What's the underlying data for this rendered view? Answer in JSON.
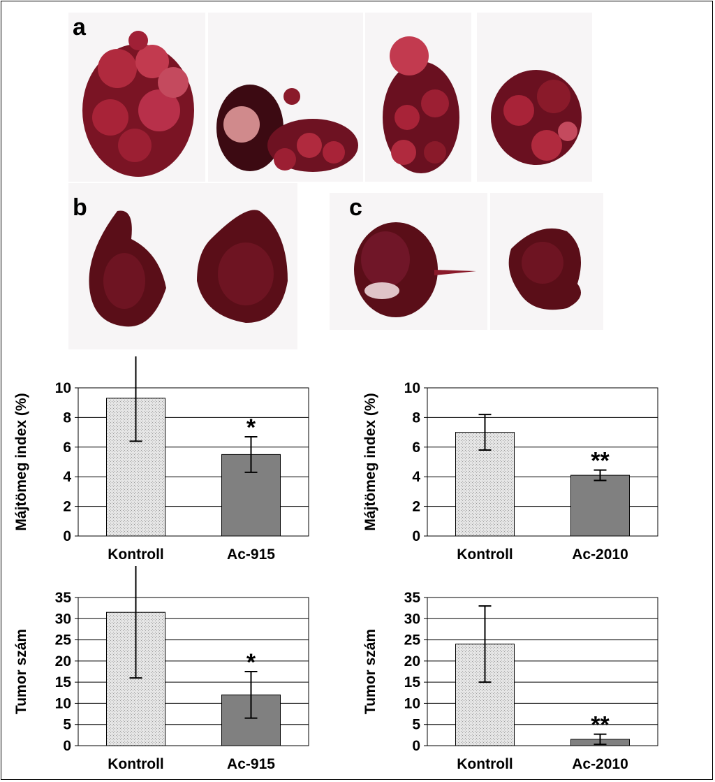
{
  "panels": {
    "a": {
      "label": "a",
      "photo_count": 4
    },
    "b": {
      "label": "b",
      "photo_count": 2
    },
    "c": {
      "label": "c",
      "photo_count": 2
    }
  },
  "colors": {
    "control_fill": "#e6e6e6",
    "treated_fill": "#808080",
    "grid": "#000000",
    "liver_dark": "#5a0e18",
    "liver_mid": "#8a1a2a",
    "liver_light": "#c23a4f"
  },
  "chart_data": [
    {
      "type": "bar",
      "id": "liver-index-ac915",
      "categories": [
        "Kontroll",
        "Ac-915"
      ],
      "values": [
        9.3,
        5.5
      ],
      "errors": [
        2.9,
        1.2
      ],
      "annotations": [
        "",
        "*"
      ],
      "ylabel": "Májtömeg index (%)",
      "ylim": [
        0,
        10
      ],
      "yticks": [
        0,
        2,
        4,
        6,
        8,
        10
      ],
      "grid": true
    },
    {
      "type": "bar",
      "id": "liver-index-ac2010",
      "categories": [
        "Kontroll",
        "Ac-2010"
      ],
      "values": [
        7.0,
        4.1
      ],
      "errors": [
        1.2,
        0.35
      ],
      "annotations": [
        "",
        "**"
      ],
      "ylabel": "Májtömeg index (%)",
      "ylim": [
        0,
        10
      ],
      "yticks": [
        0,
        2,
        4,
        6,
        8,
        10
      ],
      "grid": true
    },
    {
      "type": "bar",
      "id": "tumor-count-ac915",
      "categories": [
        "Kontroll",
        "Ac-915"
      ],
      "values": [
        31.5,
        12.0
      ],
      "errors": [
        15.5,
        5.5
      ],
      "annotations": [
        "",
        "*"
      ],
      "ylabel": "Tumor szám",
      "ylim": [
        0,
        35
      ],
      "yticks": [
        0,
        5,
        10,
        15,
        20,
        25,
        30,
        35
      ],
      "grid": true
    },
    {
      "type": "bar",
      "id": "tumor-count-ac2010",
      "categories": [
        "Kontroll",
        "Ac-2010"
      ],
      "values": [
        24.0,
        1.5
      ],
      "errors": [
        9.0,
        1.2
      ],
      "annotations": [
        "",
        "**"
      ],
      "ylabel": "Tumor szám",
      "ylim": [
        0,
        35
      ],
      "yticks": [
        0,
        5,
        10,
        15,
        20,
        25,
        30,
        35
      ],
      "grid": true
    }
  ]
}
